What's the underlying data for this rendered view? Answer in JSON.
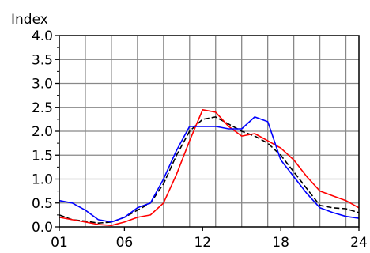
{
  "chart_data": {
    "type": "line",
    "title": "",
    "ylabel": "Index",
    "xlabel": "",
    "xlim": [
      1,
      24
    ],
    "ylim": [
      0,
      4
    ],
    "grid": true,
    "legend": "none",
    "x_ticks": [
      1,
      6,
      12,
      18,
      24
    ],
    "x_tick_labels": [
      "01",
      "06",
      "12",
      "18",
      "24"
    ],
    "y_ticks": [
      0,
      0.5,
      1,
      1.5,
      2,
      2.5,
      3,
      3.5,
      4
    ],
    "y_tick_labels": [
      "0.0",
      "0.5",
      "1.0",
      "1.5",
      "2.0",
      "2.5",
      "3.0",
      "3.5",
      "4.0"
    ],
    "x": [
      1,
      2,
      3,
      4,
      5,
      6,
      7,
      8,
      9,
      10,
      11,
      12,
      13,
      14,
      15,
      16,
      17,
      18,
      19,
      20,
      21,
      22,
      23,
      24
    ],
    "series": [
      {
        "color": "#000000",
        "dash": true,
        "values": [
          0.25,
          0.15,
          0.12,
          0.08,
          0.1,
          0.2,
          0.35,
          0.5,
          0.9,
          1.5,
          2.0,
          2.25,
          2.3,
          2.15,
          2.0,
          1.9,
          1.75,
          1.5,
          1.15,
          0.8,
          0.45,
          0.4,
          0.38,
          0.3
        ]
      },
      {
        "color": "#ff0000",
        "dash": false,
        "values": [
          0.2,
          0.15,
          0.1,
          0.05,
          0.03,
          0.1,
          0.2,
          0.25,
          0.5,
          1.1,
          1.8,
          2.45,
          2.4,
          2.1,
          1.9,
          1.95,
          1.8,
          1.65,
          1.4,
          1.05,
          0.75,
          0.65,
          0.55,
          0.4
        ]
      },
      {
        "color": "#0000ff",
        "dash": false,
        "values": [
          0.55,
          0.5,
          0.35,
          0.15,
          0.1,
          0.2,
          0.4,
          0.5,
          1.0,
          1.6,
          2.1,
          2.1,
          2.1,
          2.05,
          2.05,
          2.3,
          2.2,
          1.4,
          1.05,
          0.7,
          0.4,
          0.3,
          0.22,
          0.18
        ]
      }
    ]
  }
}
